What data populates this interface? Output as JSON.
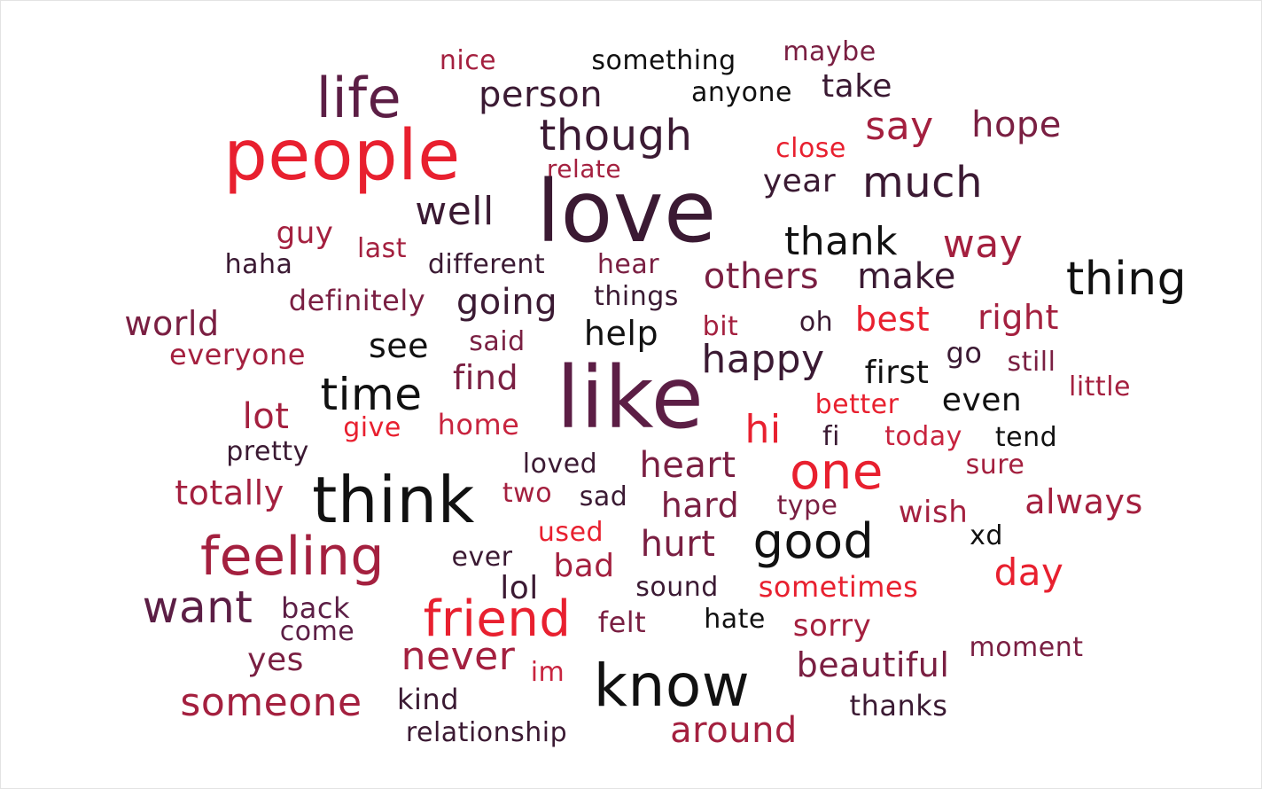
{
  "colors": {
    "black": "#111111",
    "dark_plum": "#3b1a33",
    "plum": "#5c1e45",
    "maroon": "#7a1f42",
    "crimson": "#a4203f",
    "rose": "#c8243f",
    "red": "#e8202f"
  },
  "words": [
    {
      "text": "nice",
      "size": 30,
      "color": "#a4203f"
    },
    {
      "text": "something",
      "size": 30,
      "color": "#111111"
    },
    {
      "text": "maybe",
      "size": 30,
      "color": "#7a1f42"
    },
    {
      "text": "life",
      "size": 62,
      "color": "#5c1e45"
    },
    {
      "text": "person",
      "size": 40,
      "color": "#3b1a33"
    },
    {
      "text": "anyone",
      "size": 30,
      "color": "#111111"
    },
    {
      "text": "take",
      "size": 36,
      "color": "#3b1a33"
    },
    {
      "text": "people",
      "size": 78,
      "color": "#e8202f"
    },
    {
      "text": "though",
      "size": 48,
      "color": "#3b1a33"
    },
    {
      "text": "say",
      "size": 44,
      "color": "#a4203f"
    },
    {
      "text": "hope",
      "size": 40,
      "color": "#7a1f42"
    },
    {
      "text": "close",
      "size": 30,
      "color": "#e8202f"
    },
    {
      "text": "relate",
      "size": 28,
      "color": "#a4203f"
    },
    {
      "text": "year",
      "size": 36,
      "color": "#3b1a33"
    },
    {
      "text": "much",
      "size": 48,
      "color": "#3b1a33"
    },
    {
      "text": "love",
      "size": 96,
      "color": "#3b1a33"
    },
    {
      "text": "well",
      "size": 44,
      "color": "#3b1a33"
    },
    {
      "text": "guy",
      "size": 34,
      "color": "#a4203f"
    },
    {
      "text": "last",
      "size": 30,
      "color": "#a4203f"
    },
    {
      "text": "thank",
      "size": 44,
      "color": "#111111"
    },
    {
      "text": "way",
      "size": 44,
      "color": "#a4203f"
    },
    {
      "text": "haha",
      "size": 30,
      "color": "#3b1a33"
    },
    {
      "text": "different",
      "size": 30,
      "color": "#3b1a33"
    },
    {
      "text": "hear",
      "size": 30,
      "color": "#7a1f42"
    },
    {
      "text": "others",
      "size": 40,
      "color": "#7a1f42"
    },
    {
      "text": "make",
      "size": 40,
      "color": "#3b1a33"
    },
    {
      "text": "thing",
      "size": 52,
      "color": "#111111"
    },
    {
      "text": "definitely",
      "size": 32,
      "color": "#7a1f42"
    },
    {
      "text": "going",
      "size": 40,
      "color": "#3b1a33"
    },
    {
      "text": "things",
      "size": 30,
      "color": "#3b1a33"
    },
    {
      "text": "world",
      "size": 38,
      "color": "#7a1f42"
    },
    {
      "text": "bit",
      "size": 30,
      "color": "#a4203f"
    },
    {
      "text": "oh",
      "size": 30,
      "color": "#3b1a33"
    },
    {
      "text": "best",
      "size": 38,
      "color": "#e8202f"
    },
    {
      "text": "right",
      "size": 38,
      "color": "#a4203f"
    },
    {
      "text": "see",
      "size": 38,
      "color": "#111111"
    },
    {
      "text": "said",
      "size": 30,
      "color": "#7a1f42"
    },
    {
      "text": "help",
      "size": 38,
      "color": "#111111"
    },
    {
      "text": "everyone",
      "size": 32,
      "color": "#a4203f"
    },
    {
      "text": "happy",
      "size": 44,
      "color": "#3b1a33"
    },
    {
      "text": "go",
      "size": 32,
      "color": "#3b1a33"
    },
    {
      "text": "still",
      "size": 30,
      "color": "#7a1f42"
    },
    {
      "text": "first",
      "size": 36,
      "color": "#111111"
    },
    {
      "text": "time",
      "size": 50,
      "color": "#111111"
    },
    {
      "text": "find",
      "size": 38,
      "color": "#7a1f42"
    },
    {
      "text": "like",
      "size": 96,
      "color": "#5c1e45"
    },
    {
      "text": "little",
      "size": 30,
      "color": "#a4203f"
    },
    {
      "text": "even",
      "size": 36,
      "color": "#111111"
    },
    {
      "text": "better",
      "size": 30,
      "color": "#e8202f"
    },
    {
      "text": "lot",
      "size": 40,
      "color": "#a4203f"
    },
    {
      "text": "give",
      "size": 30,
      "color": "#e8202f"
    },
    {
      "text": "home",
      "size": 32,
      "color": "#c8243f"
    },
    {
      "text": "hi",
      "size": 44,
      "color": "#e8202f"
    },
    {
      "text": "fi",
      "size": 30,
      "color": "#3b1a33"
    },
    {
      "text": "today",
      "size": 30,
      "color": "#c8243f"
    },
    {
      "text": "tend",
      "size": 30,
      "color": "#111111"
    },
    {
      "text": "pretty",
      "size": 30,
      "color": "#3b1a33"
    },
    {
      "text": "loved",
      "size": 30,
      "color": "#3b1a33"
    },
    {
      "text": "heart",
      "size": 40,
      "color": "#7a1f42"
    },
    {
      "text": "one",
      "size": 56,
      "color": "#e8202f"
    },
    {
      "text": "sure",
      "size": 30,
      "color": "#a4203f"
    },
    {
      "text": "think",
      "size": 72,
      "color": "#111111"
    },
    {
      "text": "totally",
      "size": 38,
      "color": "#a4203f"
    },
    {
      "text": "two",
      "size": 30,
      "color": "#a4203f"
    },
    {
      "text": "sad",
      "size": 30,
      "color": "#3b1a33"
    },
    {
      "text": "hard",
      "size": 38,
      "color": "#7a1f42"
    },
    {
      "text": "type",
      "size": 30,
      "color": "#7a1f42"
    },
    {
      "text": "wish",
      "size": 34,
      "color": "#a4203f"
    },
    {
      "text": "always",
      "size": 38,
      "color": "#a4203f"
    },
    {
      "text": "feeling",
      "size": 60,
      "color": "#a4203f"
    },
    {
      "text": "used",
      "size": 30,
      "color": "#e8202f"
    },
    {
      "text": "hurt",
      "size": 40,
      "color": "#7a1f42"
    },
    {
      "text": "good",
      "size": 54,
      "color": "#111111"
    },
    {
      "text": "xd",
      "size": 30,
      "color": "#111111"
    },
    {
      "text": "ever",
      "size": 30,
      "color": "#3b1a33"
    },
    {
      "text": "bad",
      "size": 36,
      "color": "#a4203f"
    },
    {
      "text": "day",
      "size": 42,
      "color": "#e8202f"
    },
    {
      "text": "lol",
      "size": 36,
      "color": "#3b1a33"
    },
    {
      "text": "sound",
      "size": 30,
      "color": "#3b1a33"
    },
    {
      "text": "sometimes",
      "size": 32,
      "color": "#e8202f"
    },
    {
      "text": "want",
      "size": 50,
      "color": "#5c1e45"
    },
    {
      "text": "back",
      "size": 32,
      "color": "#5c1e45"
    },
    {
      "text": "friend",
      "size": 56,
      "color": "#e8202f"
    },
    {
      "text": "felt",
      "size": 32,
      "color": "#7a1f42"
    },
    {
      "text": "hate",
      "size": 30,
      "color": "#111111"
    },
    {
      "text": "sorry",
      "size": 34,
      "color": "#a4203f"
    },
    {
      "text": "come",
      "size": 30,
      "color": "#5c1e45"
    },
    {
      "text": "moment",
      "size": 30,
      "color": "#7a1f42"
    },
    {
      "text": "yes",
      "size": 36,
      "color": "#7a1f42"
    },
    {
      "text": "never",
      "size": 44,
      "color": "#a4203f"
    },
    {
      "text": "im",
      "size": 30,
      "color": "#c8243f"
    },
    {
      "text": "know",
      "size": 66,
      "color": "#111111"
    },
    {
      "text": "beautiful",
      "size": 38,
      "color": "#7a1f42"
    },
    {
      "text": "someone",
      "size": 44,
      "color": "#a4203f"
    },
    {
      "text": "kind",
      "size": 32,
      "color": "#3b1a33"
    },
    {
      "text": "thanks",
      "size": 32,
      "color": "#3b1a33"
    },
    {
      "text": "relationship",
      "size": 30,
      "color": "#3b1a33"
    },
    {
      "text": "around",
      "size": 40,
      "color": "#a4203f"
    }
  ]
}
